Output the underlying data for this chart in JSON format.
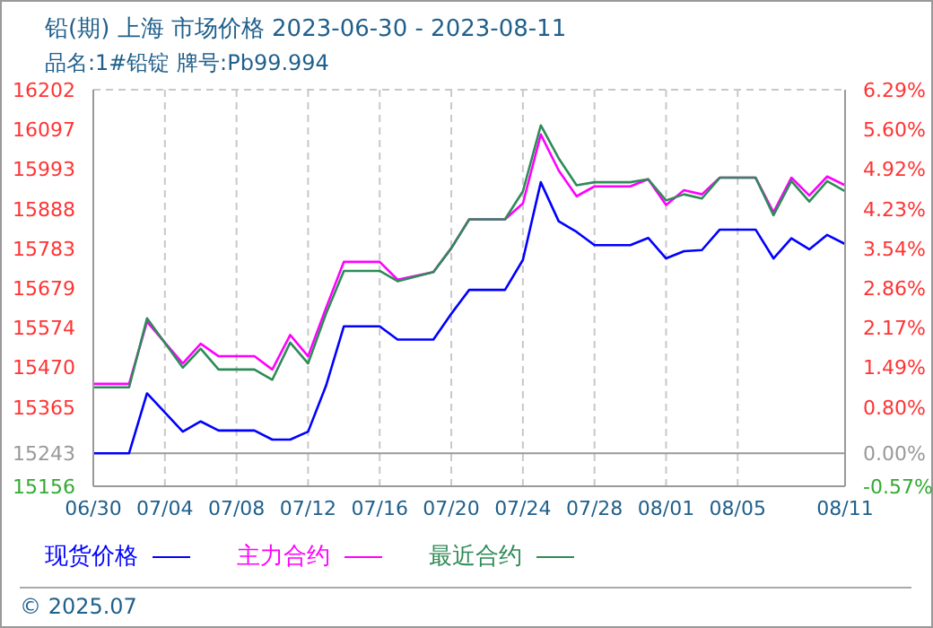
{
  "chart_data": {
    "type": "line",
    "title": "铅(期) 上海 市场价格 2023-06-30 - 2023-08-11",
    "subtitle": "品名:1#铅锭 牌号:Pb99.994",
    "annotations": [
      "© 2025.07"
    ],
    "x": [
      "2023-06-30",
      "2023-07-02",
      "2023-07-03",
      "2023-07-05",
      "2023-07-06",
      "2023-07-07",
      "2023-07-09",
      "2023-07-10",
      "2023-07-11",
      "2023-07-12",
      "2023-07-13",
      "2023-07-14",
      "2023-07-16",
      "2023-07-17",
      "2023-07-19",
      "2023-07-20",
      "2023-07-21",
      "2023-07-23",
      "2023-07-24",
      "2023-07-25",
      "2023-07-26",
      "2023-07-27",
      "2023-07-28",
      "2023-07-30",
      "2023-07-31",
      "2023-08-01",
      "2023-08-02",
      "2023-08-03",
      "2023-08-04",
      "2023-08-06",
      "2023-08-07",
      "2023-08-08",
      "2023-08-09",
      "2023-08-10",
      "2023-08-11"
    ],
    "series": [
      {
        "name": "现货价格",
        "color": "#0000ff",
        "values": [
          15243,
          15243,
          15401,
          15300,
          15327,
          15303,
          15303,
          15279,
          15279,
          15300,
          15421,
          15578,
          15578,
          15543,
          15543,
          15611,
          15674,
          15674,
          15753,
          15958,
          15855,
          15827,
          15792,
          15792,
          15811,
          15757,
          15776,
          15779,
          15833,
          15833,
          15757,
          15810,
          15781,
          15819,
          15795
        ]
      },
      {
        "name": "主力合约",
        "color": "#ff00ff",
        "values": [
          15426,
          15426,
          15590,
          15480,
          15532,
          15499,
          15499,
          15464,
          15555,
          15499,
          15626,
          15748,
          15748,
          15701,
          15721,
          15784,
          15860,
          15860,
          15902,
          16084,
          15989,
          15921,
          15947,
          15947,
          15966,
          15898,
          15937,
          15926,
          15970,
          15970,
          15879,
          15970,
          15923,
          15973,
          15950
        ]
      },
      {
        "name": "最近合约",
        "color": "#2e8b57",
        "values": [
          15417,
          15417,
          15599,
          15469,
          15519,
          15464,
          15464,
          15437,
          15535,
          15480,
          15611,
          15724,
          15724,
          15697,
          15721,
          15784,
          15860,
          15860,
          15934,
          16108,
          16021,
          15950,
          15958,
          15958,
          15966,
          15910,
          15926,
          15915,
          15970,
          15970,
          15871,
          15961,
          15907,
          15961,
          15934
        ]
      }
    ],
    "xlim": [
      "2023-06-30",
      "2023-08-11"
    ],
    "xticks": [
      {
        "value": "2023-06-30",
        "label": "06/30"
      },
      {
        "value": "2023-07-04",
        "label": "07/04"
      },
      {
        "value": "2023-07-08",
        "label": "07/08"
      },
      {
        "value": "2023-07-12",
        "label": "07/12"
      },
      {
        "value": "2023-07-16",
        "label": "07/16"
      },
      {
        "value": "2023-07-20",
        "label": "07/20"
      },
      {
        "value": "2023-07-24",
        "label": "07/24"
      },
      {
        "value": "2023-07-28",
        "label": "07/28"
      },
      {
        "value": "2023-08-01",
        "label": "08/01"
      },
      {
        "value": "2023-08-05",
        "label": "08/05"
      },
      {
        "value": "2023-08-11",
        "label": "08/11"
      }
    ],
    "ylim": [
      15156,
      16202
    ],
    "yticks": [
      15156,
      15243,
      15365,
      15470,
      15574,
      15679,
      15783,
      15888,
      15993,
      16097,
      16202
    ],
    "y2lim": [
      -0.57,
      6.29
    ],
    "y2ticks": [
      {
        "value": -0.57,
        "label": "-0.57%"
      },
      {
        "value": 0,
        "label": "0.00%"
      },
      {
        "value": 0.8,
        "label": "0.80%"
      },
      {
        "value": 1.49,
        "label": "1.49%"
      },
      {
        "value": 2.17,
        "label": "2.17%"
      },
      {
        "value": 2.86,
        "label": "2.86%"
      },
      {
        "value": 3.54,
        "label": "3.54%"
      },
      {
        "value": 4.23,
        "label": "4.23%"
      },
      {
        "value": 4.92,
        "label": "4.92%"
      },
      {
        "value": 5.6,
        "label": "5.60%"
      },
      {
        "value": 6.29,
        "label": "6.29%"
      }
    ],
    "ref_lines": [
      {
        "axis": "y",
        "value": 15243,
        "color": "#999999"
      }
    ],
    "grid": true,
    "legend": "bottom left",
    "marker": "none",
    "line_style": "solid"
  }
}
